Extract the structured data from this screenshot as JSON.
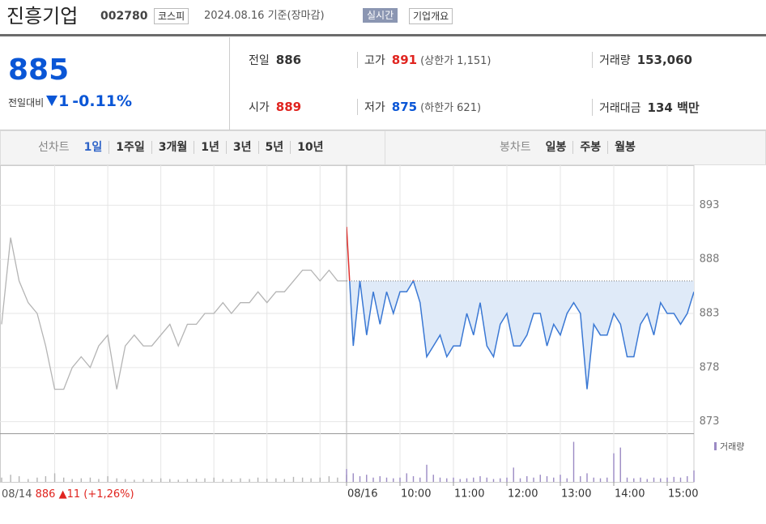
{
  "header": {
    "title": "진흥기업",
    "code": "002780",
    "market": "코스피",
    "date": "2024.08.16",
    "date_note": "기준(장마감)",
    "realtime": "실시간",
    "company_info": "기업개요"
  },
  "quote": {
    "price": "885",
    "change_label": "전일대비",
    "change": "1",
    "change_rate": "-0.11%"
  },
  "stats": [
    {
      "label": "전일",
      "value": "886"
    },
    {
      "label": "고가",
      "value": "891",
      "note": "(상한가 1,151)"
    },
    {
      "label": "거래량",
      "value": "153,060"
    },
    {
      "label": "시가",
      "value": "889"
    },
    {
      "label": "저가",
      "value": "875",
      "note": "(하한가 621)"
    },
    {
      "label": "거래대금",
      "value": "134 백만"
    }
  ],
  "tabs": {
    "line_label": "선차트",
    "line_periods": [
      "1일",
      "1주일",
      "3개월",
      "1년",
      "3년",
      "5년",
      "10년"
    ],
    "candle_label": "봉차트",
    "candle_periods": [
      "일봉",
      "주봉",
      "월봉"
    ]
  },
  "chart_data": {
    "type": "line",
    "ylim": [
      872,
      895.5
    ],
    "yticks": [
      873,
      878,
      883,
      888,
      893
    ],
    "xlim": [
      9,
      15.5
    ],
    "xticks": [
      {
        "value": 9,
        "label": "08/16"
      },
      {
        "value": 10,
        "label": "10:00"
      },
      {
        "value": 11,
        "label": "11:00"
      },
      {
        "value": 12,
        "label": "12:00"
      },
      {
        "value": 13,
        "label": "13:00"
      },
      {
        "value": 14,
        "label": "14:00"
      },
      {
        "value": 15,
        "label": "15:00"
      }
    ],
    "prev_close": 886,
    "volume_label": "거래량",
    "vlim": [
      0,
      30000
    ],
    "previous": {
      "date": "08/14",
      "close": "886",
      "change": "11",
      "change_rate": "(+1,26%)",
      "color": "#b4b4b4",
      "x": [
        9,
        9.17,
        9.33,
        9.5,
        9.67,
        9.83,
        10,
        10.17,
        10.33,
        10.5,
        10.67,
        10.83,
        11,
        11.17,
        11.33,
        11.5,
        11.67,
        11.83,
        12,
        12.17,
        12.33,
        12.5,
        12.67,
        12.83,
        13,
        13.17,
        13.33,
        13.5,
        13.67,
        13.83,
        14,
        14.17,
        14.33,
        14.5,
        14.67,
        14.83,
        15,
        15.17,
        15.33,
        15.5
      ],
      "values": [
        882,
        890,
        886,
        884,
        883,
        880,
        876,
        876,
        878,
        879,
        878,
        880,
        881,
        876,
        880,
        881,
        880,
        880,
        881,
        882,
        880,
        882,
        882,
        883,
        883,
        884,
        883,
        884,
        884,
        885,
        884,
        885,
        885,
        886,
        887,
        887,
        886,
        887,
        886,
        886
      ],
      "volume": [
        3000,
        5000,
        4000,
        2000,
        3000,
        4000,
        6000,
        3000,
        2000,
        2500,
        3000,
        2000,
        4000,
        2500,
        2000,
        1500,
        2000,
        1800,
        2500,
        2000,
        1500,
        2000,
        2200,
        2500,
        3000,
        2000,
        1800,
        2500,
        2000,
        3000,
        2200,
        2500,
        2000,
        3500,
        3000,
        2500,
        3000,
        4000,
        3000,
        5000
      ]
    },
    "today": {
      "color": "#3a78d4",
      "up_color": "#e0312e",
      "fill": "#dfeaf8",
      "volume_color": "#9b8ac4",
      "x": [
        9,
        9.125,
        9.25,
        9.375,
        9.5,
        9.625,
        9.75,
        9.875,
        10,
        10.125,
        10.25,
        10.375,
        10.5,
        10.625,
        10.75,
        10.875,
        11,
        11.125,
        11.25,
        11.375,
        11.5,
        11.625,
        11.75,
        11.875,
        12,
        12.125,
        12.25,
        12.375,
        12.5,
        12.625,
        12.75,
        12.875,
        13,
        13.125,
        13.25,
        13.375,
        13.5,
        13.625,
        13.75,
        13.875,
        14,
        14.125,
        14.25,
        14.375,
        14.5,
        14.625,
        14.75,
        14.875,
        15,
        15.125,
        15.25,
        15.375,
        15.5
      ],
      "values": [
        891,
        880,
        886,
        881,
        885,
        882,
        885,
        883,
        885,
        885,
        886,
        884,
        879,
        880,
        881,
        879,
        880,
        880,
        883,
        881,
        884,
        880,
        879,
        882,
        883,
        880,
        880,
        881,
        883,
        883,
        880,
        882,
        881,
        883,
        884,
        883,
        876,
        882,
        881,
        881,
        883,
        882,
        879,
        879,
        882,
        883,
        881,
        884,
        883,
        883,
        882,
        883,
        885
      ],
      "volume": [
        9000,
        6000,
        4000,
        5000,
        3000,
        4000,
        3000,
        2500,
        3000,
        6000,
        4000,
        3000,
        12000,
        5000,
        3000,
        2500,
        3000,
        2000,
        2500,
        3000,
        4000,
        3000,
        2000,
        2500,
        3000,
        10000,
        2500,
        4000,
        3000,
        5000,
        4000,
        3000,
        5000,
        2500,
        28000,
        4000,
        6000,
        3000,
        2500,
        3000,
        20000,
        24000,
        3000,
        2500,
        3000,
        2000,
        3000,
        2500,
        3000,
        3500,
        3000,
        4000,
        8000
      ]
    }
  }
}
